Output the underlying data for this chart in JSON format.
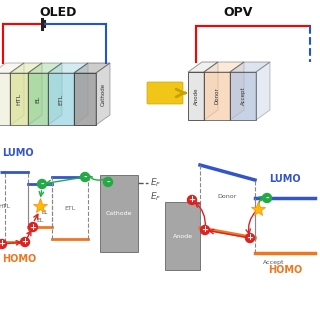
{
  "title_oled": "OLED",
  "title_opv": "OPV",
  "bg_color": "#ffffff",
  "lumo_color": "#3355cc",
  "homo_color": "#ee7722",
  "electron_color": "#22aa44",
  "hole_color": "#dd2222",
  "cathode_color": "#888888",
  "anode_color": "#888888",
  "oled_layers": [
    {
      "label": "HTL",
      "color": "#d4dd88",
      "alpha": 0.65
    },
    {
      "label": "EL",
      "color": "#88cc88",
      "alpha": 0.65
    },
    {
      "label": "ETL",
      "color": "#88ccdd",
      "alpha": 0.65
    },
    {
      "label": "Cathode",
      "color": "#999999",
      "alpha": 0.85
    }
  ],
  "opv_layers": [
    {
      "label": "Anode",
      "color": "#dddddd",
      "alpha": 0.8
    },
    {
      "label": "Donor",
      "color": "#f5c8a0",
      "alpha": 0.65
    },
    {
      "label": "Accept",
      "color": "#aabbd8",
      "alpha": 0.65
    }
  ]
}
